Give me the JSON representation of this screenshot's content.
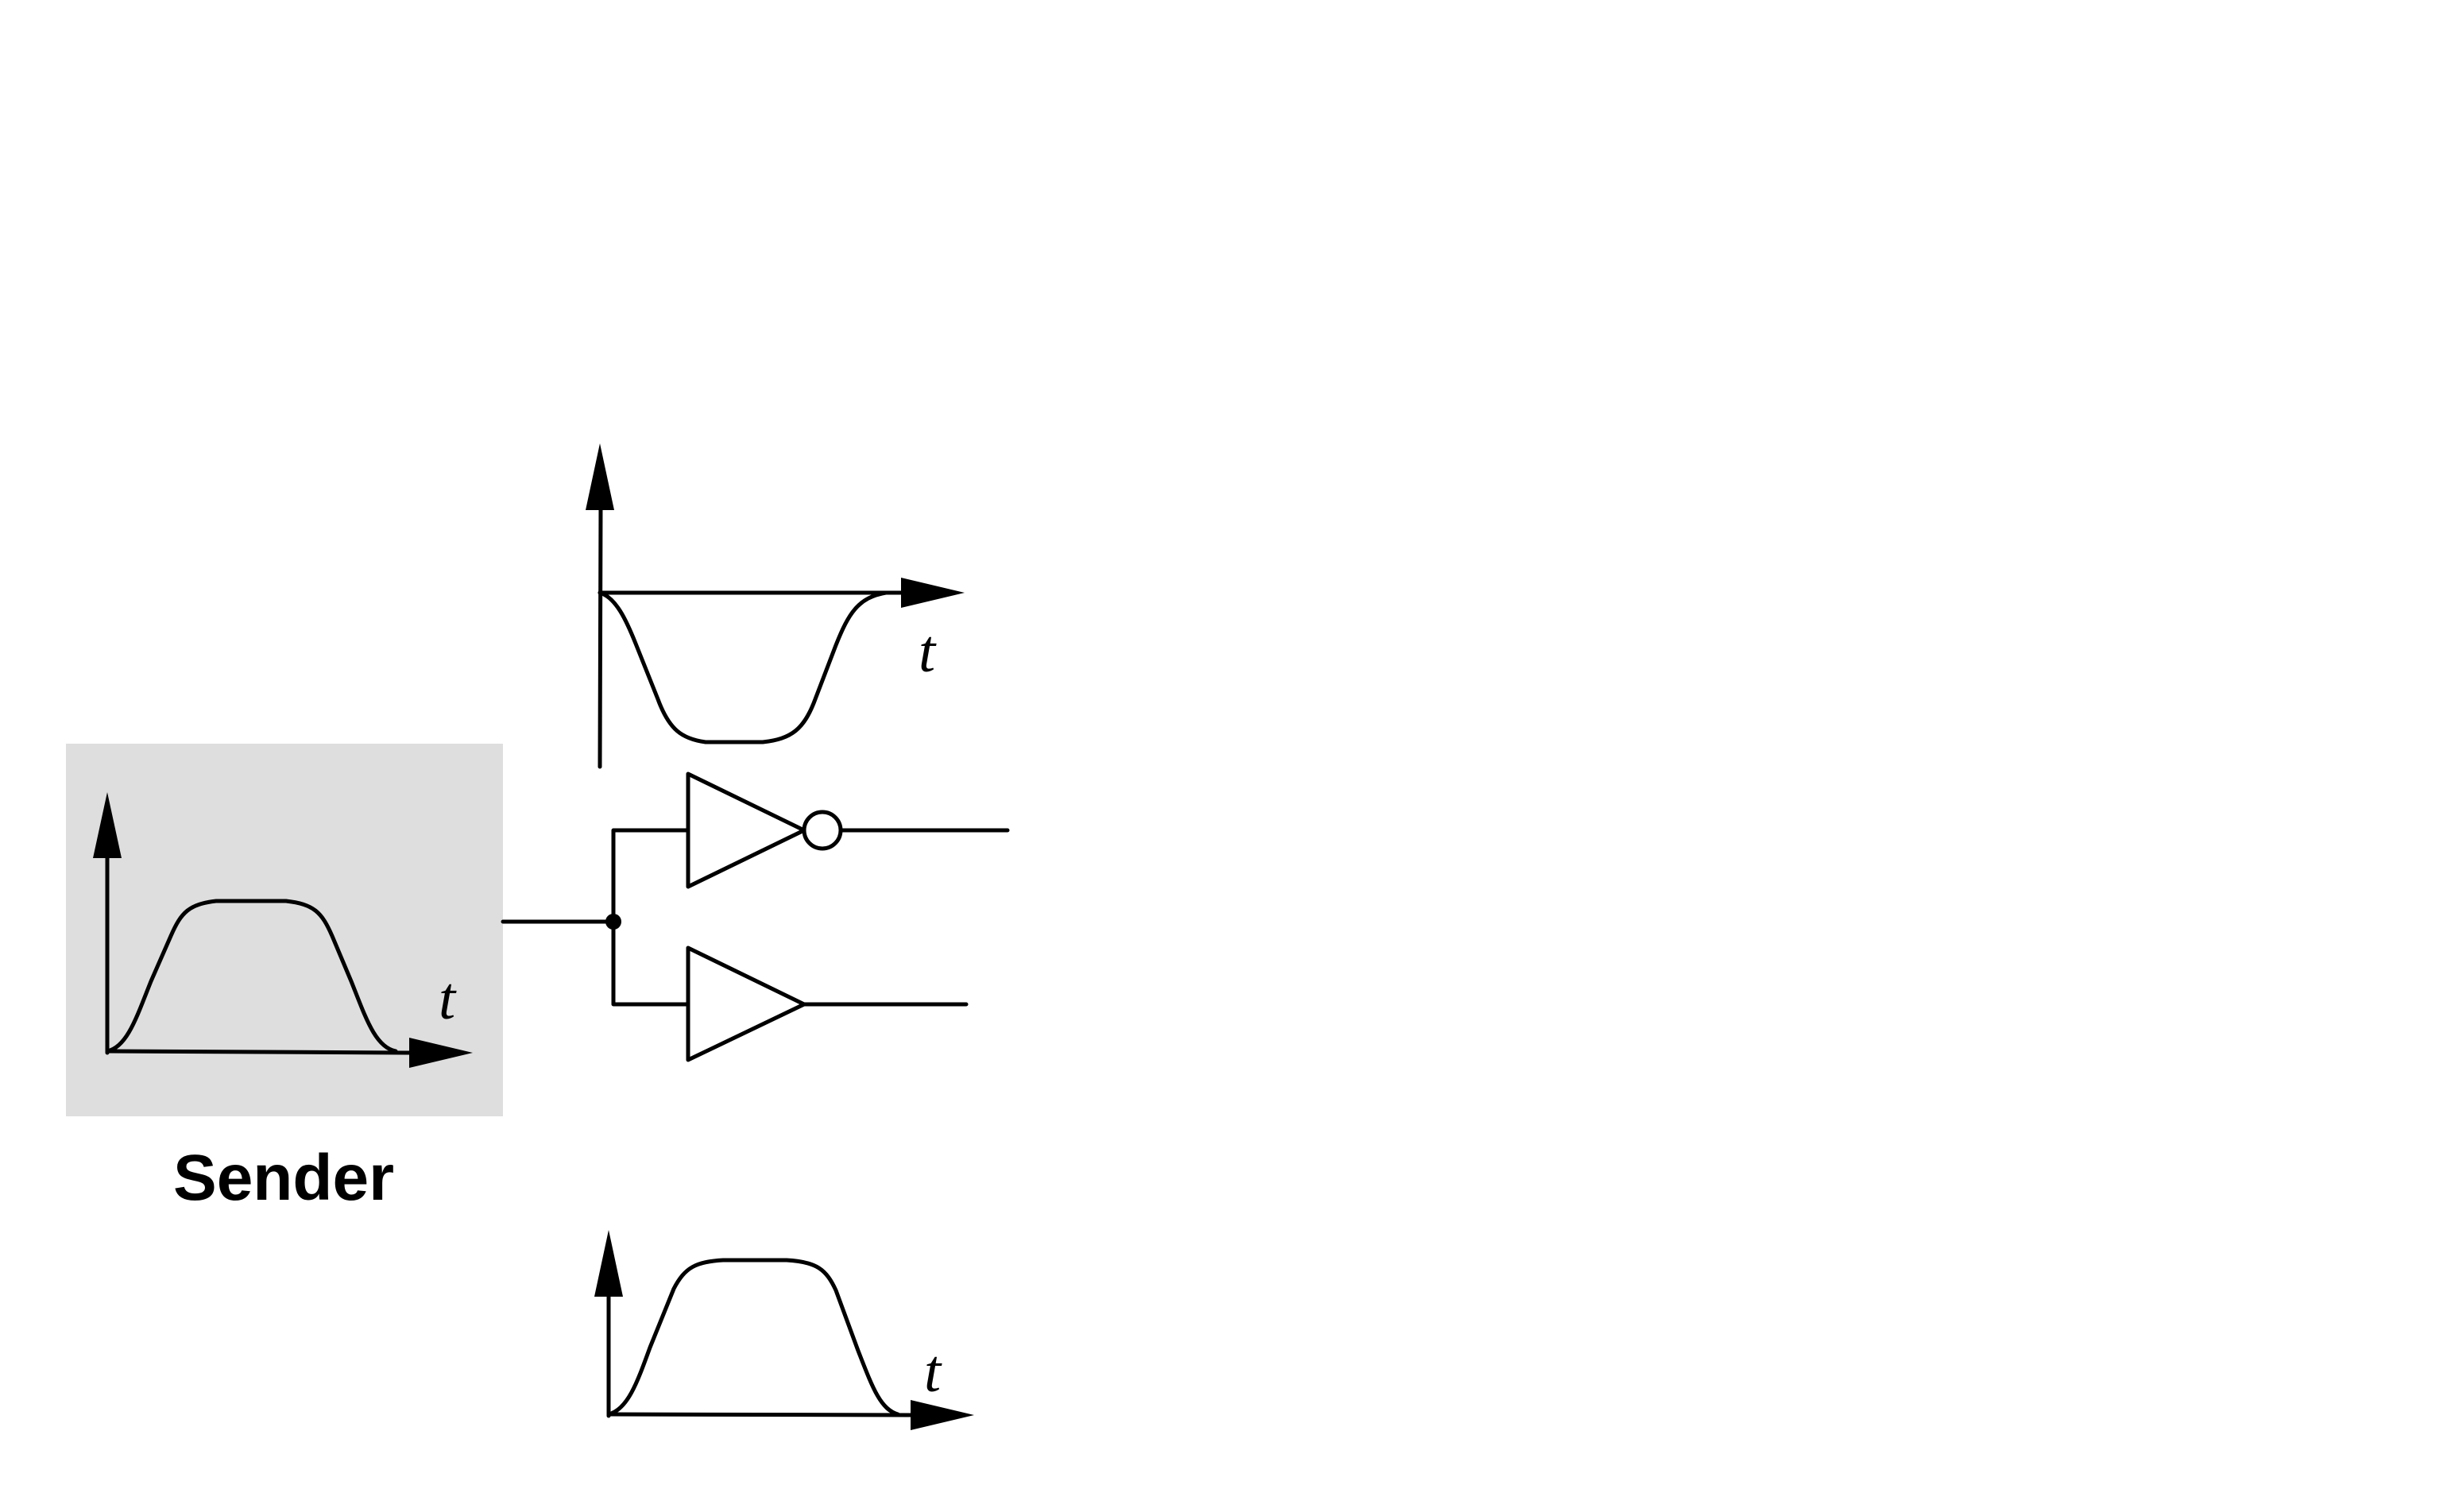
{
  "sender": {
    "label": "Sender",
    "box_fill": "#dedede"
  },
  "axis_label": "t",
  "colors": {
    "line": "#000000",
    "background": "#ffffff"
  }
}
